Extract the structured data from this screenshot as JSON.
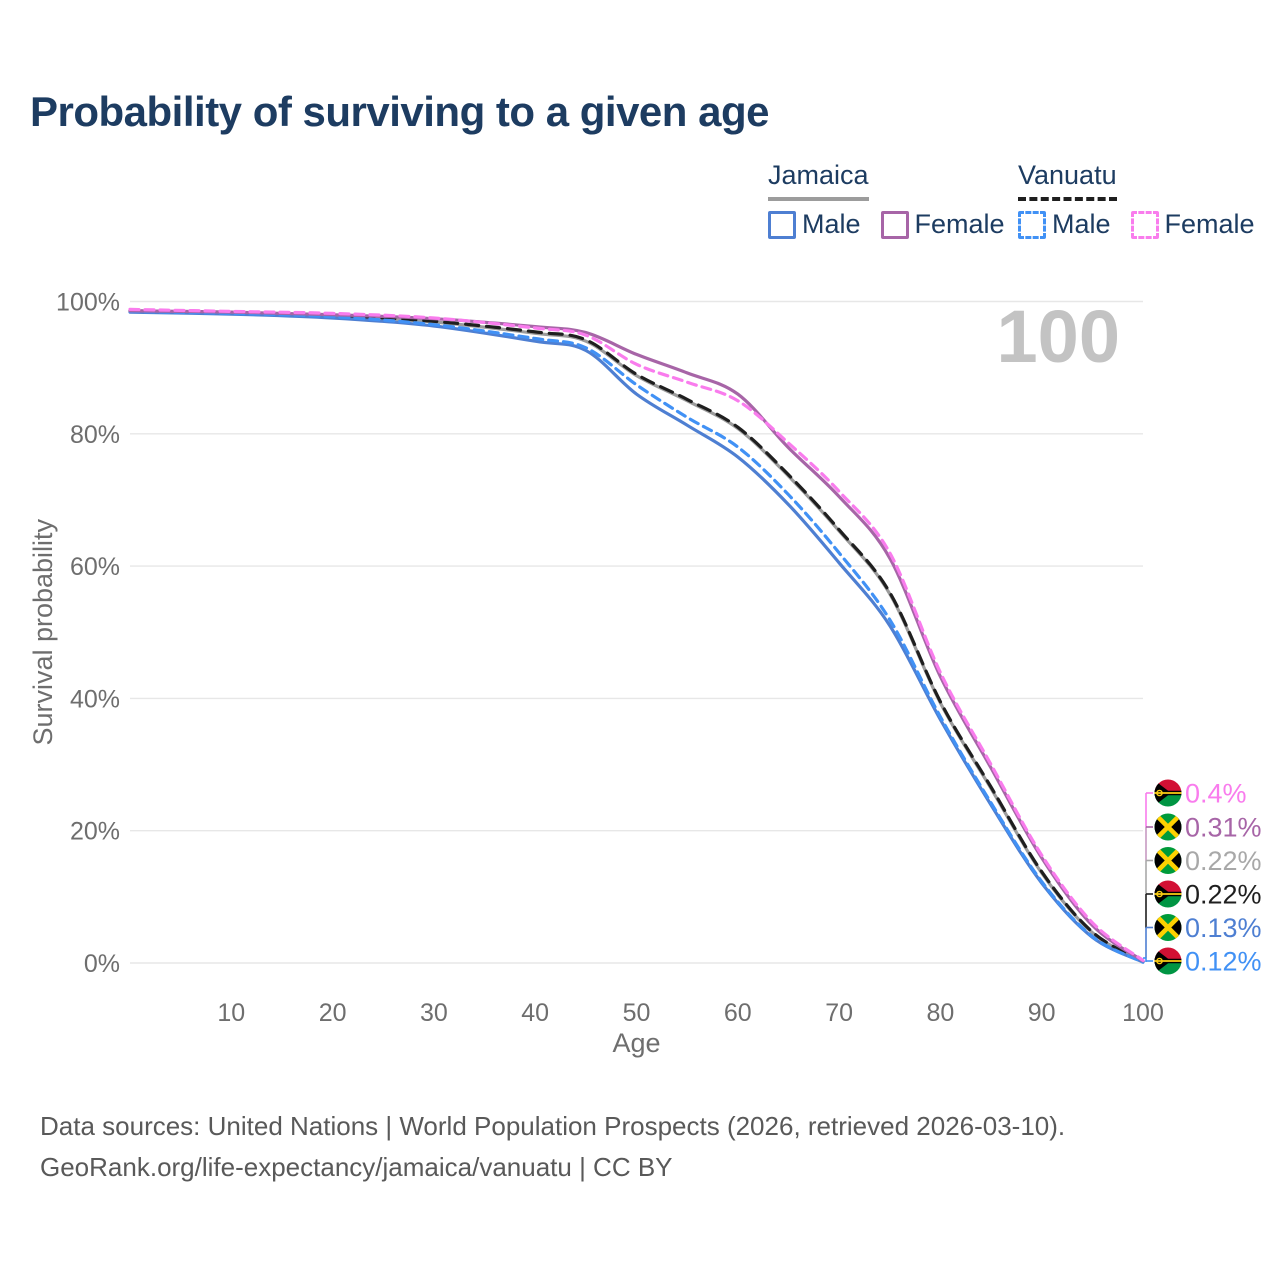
{
  "title": "Probability of surviving to a given age",
  "legend": {
    "groups": [
      {
        "country": "Jamaica",
        "line_style": "solid",
        "underline_color": "#9c9c9c",
        "items": [
          {
            "label": "Male",
            "color": "#4e7fd2"
          },
          {
            "label": "Female",
            "color": "#a765a7"
          }
        ]
      },
      {
        "country": "Vanuatu",
        "line_style": "dashed",
        "underline_color": "#1f1f1f",
        "items": [
          {
            "label": "Male",
            "color": "#4191f5"
          },
          {
            "label": "Female",
            "color": "#f97ced"
          }
        ]
      }
    ]
  },
  "chart_data": {
    "type": "line",
    "title": "Probability of surviving to a given age",
    "xlabel": "Age",
    "ylabel": "Survival probability",
    "xlim": [
      0,
      100
    ],
    "ylim": [
      0,
      100
    ],
    "xticks": [
      10,
      20,
      30,
      40,
      50,
      60,
      70,
      80,
      90,
      100
    ],
    "yticks": [
      0,
      20,
      40,
      60,
      80,
      100
    ],
    "ytick_suffix": "%",
    "grid": "horizontal",
    "legend_position": "top-right",
    "hover_age_watermark": "100",
    "ages": [
      0,
      10,
      20,
      30,
      40,
      45,
      50,
      55,
      60,
      65,
      70,
      75,
      80,
      85,
      90,
      95,
      100
    ],
    "series": [
      {
        "name": "Jamaica Total",
        "country": "Jamaica",
        "sex": "Both",
        "color": "#9c9c9c",
        "dash": null,
        "values": [
          98.5,
          98.2,
          97.8,
          96.9,
          95.2,
          94.0,
          88.8,
          85.0,
          80.8,
          73.6,
          65.3,
          55.8,
          39.3,
          26.4,
          13.6,
          4.6,
          0.22
        ],
        "survival_at_100": "0.22%"
      },
      {
        "name": "Vanuatu Total",
        "country": "Vanuatu",
        "sex": "Both",
        "color": "#1f1f1f",
        "dash": "13,8",
        "values": [
          98.6,
          98.3,
          97.9,
          97.0,
          95.4,
          94.2,
          89.0,
          85.2,
          81.0,
          73.8,
          65.5,
          56.0,
          39.5,
          26.6,
          13.8,
          4.7,
          0.22
        ],
        "survival_at_100": "0.22%"
      },
      {
        "name": "Jamaica Male",
        "country": "Jamaica",
        "sex": "Male",
        "color": "#4e7fd2",
        "dash": null,
        "values": [
          98.4,
          98.1,
          97.5,
          96.3,
          94.0,
          92.6,
          86.0,
          81.3,
          76.5,
          69.3,
          60.5,
          51.0,
          36.8,
          23.9,
          12.1,
          3.9,
          0.13
        ],
        "survival_at_100": "0.13%"
      },
      {
        "name": "Vanuatu Male",
        "country": "Vanuatu",
        "sex": "Male",
        "color": "#4191f5",
        "dash": "9,6",
        "values": [
          98.5,
          98.2,
          97.7,
          96.5,
          94.4,
          93.0,
          87.4,
          82.5,
          78.0,
          70.8,
          62.0,
          51.9,
          37.2,
          24.2,
          12.3,
          4.0,
          0.12
        ],
        "survival_at_100": "0.12%"
      },
      {
        "name": "Jamaica Female",
        "country": "Jamaica",
        "sex": "Female",
        "color": "#a765a7",
        "dash": null,
        "values": [
          98.6,
          98.4,
          98.0,
          97.4,
          96.2,
          95.3,
          92.0,
          89.2,
          86.0,
          77.9,
          70.5,
          61.2,
          43.3,
          29.5,
          15.9,
          5.7,
          0.31
        ],
        "survival_at_100": "0.31%"
      },
      {
        "name": "Vanuatu Female",
        "country": "Vanuatu",
        "sex": "Female",
        "color": "#f97ced",
        "dash": "9,6",
        "values": [
          98.8,
          98.5,
          98.2,
          97.5,
          96.0,
          94.9,
          90.5,
          87.8,
          85.0,
          78.6,
          71.3,
          62.0,
          43.9,
          30.0,
          16.3,
          6.1,
          0.4
        ],
        "survival_at_100": "0.4%"
      }
    ],
    "end_labels_top_to_bottom": [
      {
        "text": "0.4%",
        "color": "#f97ced",
        "flag": "vanuatu",
        "series": "Vanuatu Female"
      },
      {
        "text": "0.31%",
        "color": "#a765a7",
        "flag": "jamaica",
        "series": "Jamaica Female"
      },
      {
        "text": "0.22%",
        "color": "#a8a8a8",
        "flag": "jamaica",
        "series": "Jamaica Total"
      },
      {
        "text": "0.22%",
        "color": "#1f1f1f",
        "flag": "vanuatu",
        "series": "Vanuatu Total"
      },
      {
        "text": "0.13%",
        "color": "#4e7fd2",
        "flag": "jamaica",
        "series": "Jamaica Male"
      },
      {
        "text": "0.12%",
        "color": "#4191f5",
        "flag": "vanuatu",
        "series": "Vanuatu Male"
      }
    ]
  },
  "colors": {
    "title_text": "#1d3c61",
    "axis_text": "#6e6e6e",
    "grid": "#e7e7e7",
    "watermark": "#c3c3c3"
  },
  "footer": {
    "line1": "Data sources: United Nations | World Population Prospects (2026, retrieved 2026-03-10).",
    "line2": "GeoRank.org/life-expectancy/jamaica/vanuatu | CC BY"
  }
}
